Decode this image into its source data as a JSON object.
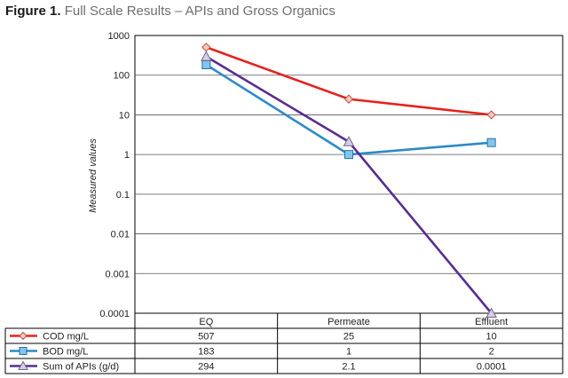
{
  "figure": {
    "label": "Figure 1.",
    "title": "Full Scale Results – APIs and Gross Organics"
  },
  "chart_data": {
    "type": "line",
    "title": "Figure 1. Full Scale Results – APIs and Gross Organics",
    "xlabel": "",
    "ylabel": "Measured values",
    "yscale": "log",
    "ylim": [
      0.0001,
      1000
    ],
    "yticks": [
      "1000",
      "100",
      "10",
      "1",
      "0.1",
      "0.01",
      "0.001",
      "0.0001"
    ],
    "ytick_values": [
      1000,
      100,
      10,
      1,
      0.1,
      0.01,
      0.001,
      0.0001
    ],
    "grid": true,
    "categories": [
      "EQ",
      "Permeate",
      "Effluent"
    ],
    "series": [
      {
        "name": "COD mg/L",
        "color": "#e8201c",
        "marker": "diamond",
        "marker_fill": "#f4c7b8",
        "values": [
          507,
          25,
          10
        ],
        "labels": [
          "507",
          "25",
          "10"
        ]
      },
      {
        "name": "BOD mg/L",
        "color": "#2d8ac8",
        "marker": "square",
        "marker_fill": "#7fc7ec",
        "values": [
          183,
          1,
          2
        ],
        "labels": [
          "183",
          "1",
          "2"
        ]
      },
      {
        "name": "Sum of APIs (g/d)",
        "color": "#5a2d91",
        "marker": "triangle",
        "marker_fill": "#d8cde6",
        "values": [
          294,
          2.1,
          0.0001
        ],
        "labels": [
          "294",
          "2.1",
          "0.0001"
        ]
      }
    ]
  }
}
